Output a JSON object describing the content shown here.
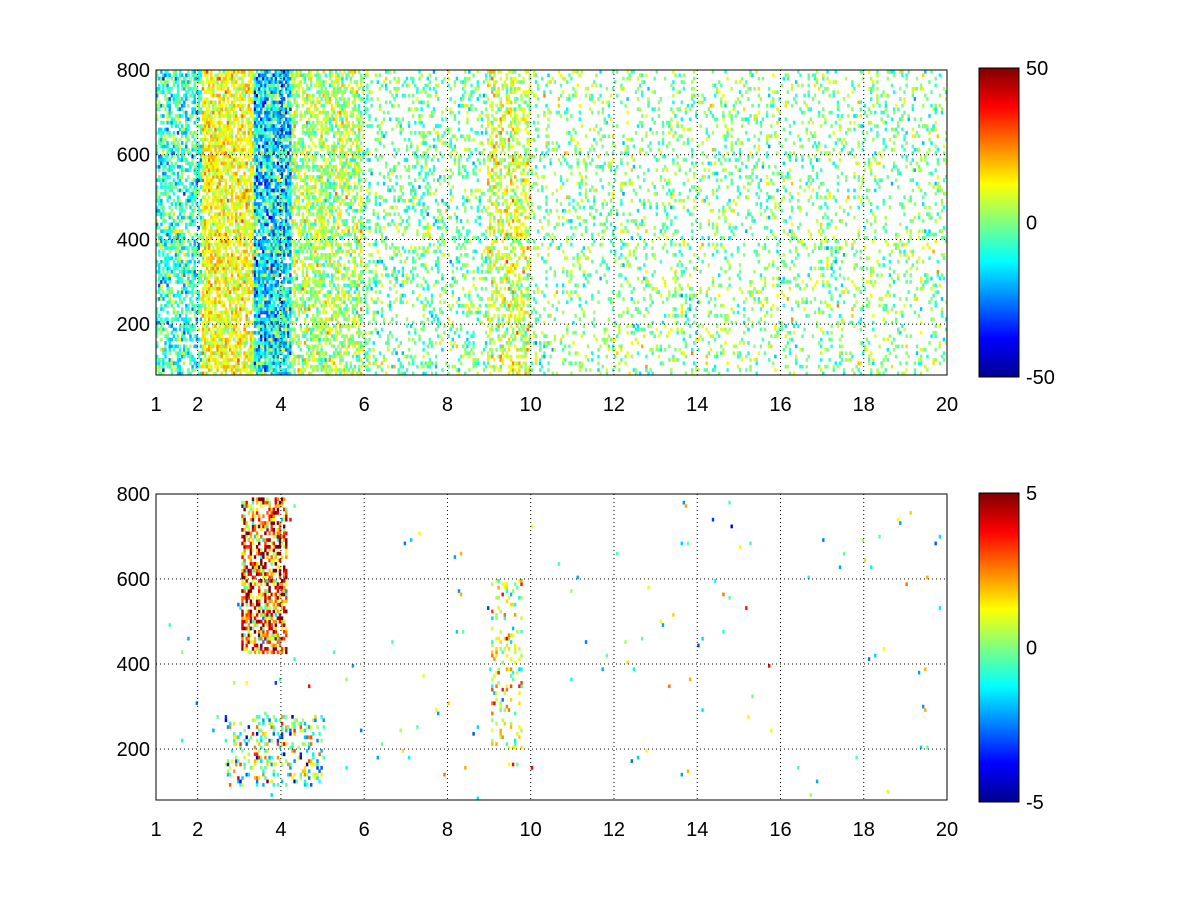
{
  "figure": {
    "background": "#ffffff"
  },
  "chart_data": [
    {
      "type": "heatmap",
      "xlim": [
        1,
        20
      ],
      "ylim": [
        80,
        800
      ],
      "grid": true,
      "grid_style": "dotted",
      "x_ticks": [
        1,
        2,
        4,
        6,
        8,
        10,
        12,
        14,
        16,
        18,
        20
      ],
      "y_ticks": [
        200,
        400,
        600,
        800
      ],
      "colormap": "jet",
      "color_range": [
        -50,
        50
      ],
      "colorbar_ticks": [
        50,
        0,
        -50
      ],
      "background_cells": "white (undefined / masked)",
      "value_distribution": [
        {
          "x_range": [
            1,
            2.1
          ],
          "density": 0.55,
          "mean": -8,
          "spread": 14
        },
        {
          "x_range": [
            2.1,
            3.3
          ],
          "density": 0.7,
          "mean": 12,
          "spread": 10
        },
        {
          "x_range": [
            3.3,
            4.2
          ],
          "density": 0.85,
          "mean": -14,
          "spread": 18
        },
        {
          "x_range": [
            4.2,
            5.9
          ],
          "density": 0.55,
          "mean": 4,
          "spread": 12
        },
        {
          "x_range": [
            5.9,
            8.9
          ],
          "density": 0.22,
          "mean": -2,
          "spread": 12
        },
        {
          "x_range": [
            8.9,
            10.0
          ],
          "density": 0.45,
          "mean": 8,
          "spread": 12
        },
        {
          "x_range": [
            10.0,
            20.0
          ],
          "density": 0.16,
          "mean": 0,
          "spread": 12
        }
      ]
    },
    {
      "type": "heatmap",
      "xlim": [
        1,
        20
      ],
      "ylim": [
        80,
        800
      ],
      "grid": true,
      "grid_style": "dotted",
      "x_ticks": [
        1,
        2,
        4,
        6,
        8,
        10,
        12,
        14,
        16,
        18,
        20
      ],
      "y_ticks": [
        200,
        400,
        600,
        800
      ],
      "colormap": "jet",
      "color_range": [
        -5,
        5
      ],
      "colorbar_ticks": [
        5,
        0,
        -5
      ],
      "background_cells": "white (undefined / masked)",
      "value_distribution": [
        {
          "x_range": [
            3.0,
            4.1
          ],
          "y_range": [
            420,
            790
          ],
          "density": 0.55,
          "mean": 3,
          "spread": 3
        },
        {
          "x_range": [
            2.6,
            5.0
          ],
          "y_range": [
            110,
            280
          ],
          "density": 0.25,
          "mean": 0,
          "spread": 3
        },
        {
          "x_range": [
            9.0,
            9.8
          ],
          "y_range": [
            200,
            600
          ],
          "density": 0.2,
          "mean": 1,
          "spread": 2
        },
        {
          "x_range": [
            1,
            20
          ],
          "y_range": [
            80,
            800
          ],
          "density": 0.004,
          "mean": 0,
          "spread": 3
        }
      ]
    }
  ]
}
